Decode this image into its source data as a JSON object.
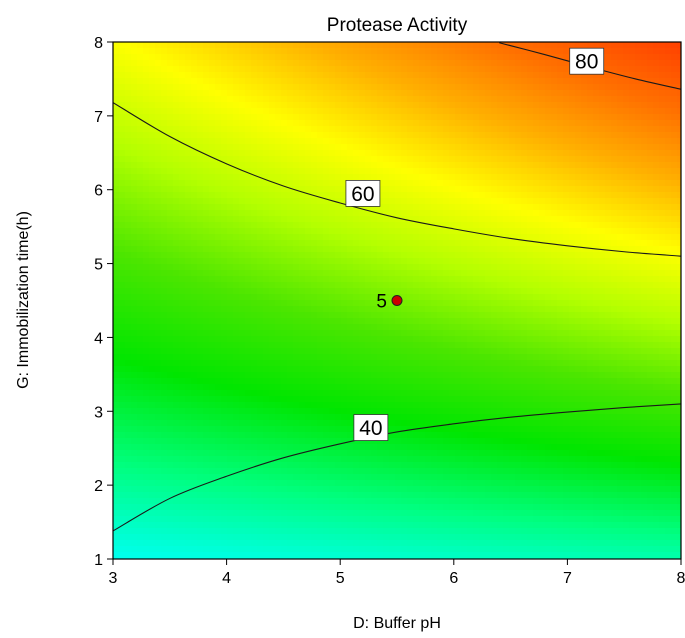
{
  "chart_data": {
    "type": "heatmap",
    "subtype": "contour",
    "title": "Protease Activity",
    "xlabel": "D: Buffer pH",
    "ylabel": "G: Immobilization time(h)",
    "xlim": [
      3,
      8
    ],
    "ylim": [
      1,
      8
    ],
    "x_ticks": [
      "3",
      "4",
      "5",
      "6",
      "7",
      "8"
    ],
    "y_ticks": [
      "1",
      "2",
      "3",
      "4",
      "5",
      "6",
      "7",
      "8"
    ],
    "grid": false,
    "colormap": [
      "#00ffff",
      "#00ff80",
      "#00e600",
      "#4ce600",
      "#b3ff00",
      "#ffff00",
      "#ffb000",
      "#ff7000",
      "#ff4000"
    ],
    "contours": [
      {
        "level": "40",
        "label_at": [
          5.27,
          2.78
        ],
        "points": [
          [
            3,
            1.38
          ],
          [
            3.5,
            1.82
          ],
          [
            4,
            2.12
          ],
          [
            4.5,
            2.37
          ],
          [
            5,
            2.56
          ],
          [
            5.5,
            2.72
          ],
          [
            6,
            2.83
          ],
          [
            6.5,
            2.92
          ],
          [
            7,
            2.99
          ],
          [
            7.5,
            3.05
          ],
          [
            8,
            3.1
          ]
        ]
      },
      {
        "level": "60",
        "label_at": [
          5.2,
          5.95
        ],
        "points": [
          [
            3,
            7.18
          ],
          [
            3.5,
            6.72
          ],
          [
            4,
            6.35
          ],
          [
            4.5,
            6.05
          ],
          [
            5,
            5.82
          ],
          [
            5.5,
            5.62
          ],
          [
            6,
            5.47
          ],
          [
            6.5,
            5.34
          ],
          [
            7,
            5.24
          ],
          [
            7.5,
            5.16
          ],
          [
            8,
            5.1
          ]
        ]
      },
      {
        "level": "80",
        "label_at": [
          7.17,
          7.74
        ],
        "points": [
          [
            6.4,
            7.99
          ],
          [
            6.8,
            7.83
          ],
          [
            7.2,
            7.66
          ],
          [
            7.6,
            7.5
          ],
          [
            8,
            7.36
          ]
        ]
      }
    ],
    "design_point": {
      "x": 5.5,
      "y": 4.5,
      "label": "5",
      "color": "#cc0000"
    }
  }
}
